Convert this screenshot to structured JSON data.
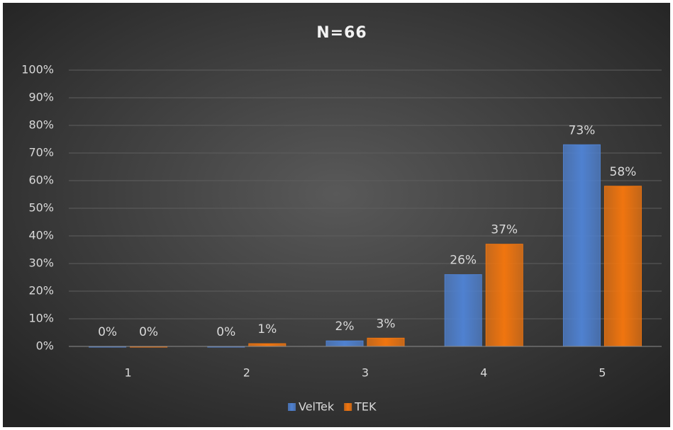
{
  "chart_data": {
    "type": "bar",
    "title": "N=66",
    "categories": [
      "1",
      "2",
      "3",
      "4",
      "5"
    ],
    "series": [
      {
        "name": "VelTek",
        "color": "#4f81d0",
        "values": [
          0,
          0,
          2,
          26,
          73
        ],
        "value_labels": [
          "0%",
          "0%",
          "2%",
          "26%",
          "73%"
        ]
      },
      {
        "name": "TEK",
        "color": "#f0750f",
        "values": [
          0,
          1,
          3,
          37,
          58
        ],
        "value_labels": [
          "0%",
          "1%",
          "3%",
          "37%",
          "58%"
        ]
      }
    ],
    "ylim": [
      0,
      100
    ],
    "yticks": [
      {
        "value": 0,
        "label": "0%"
      },
      {
        "value": 10,
        "label": "10%"
      },
      {
        "value": 20,
        "label": "20%"
      },
      {
        "value": 30,
        "label": "30%"
      },
      {
        "value": 40,
        "label": "40%"
      },
      {
        "value": 50,
        "label": "50%"
      },
      {
        "value": 60,
        "label": "60%"
      },
      {
        "value": 70,
        "label": "70%"
      },
      {
        "value": 80,
        "label": "80%"
      },
      {
        "value": 90,
        "label": "90%"
      },
      {
        "value": 100,
        "label": "100%"
      }
    ],
    "grid": true,
    "legend": "bottom"
  }
}
